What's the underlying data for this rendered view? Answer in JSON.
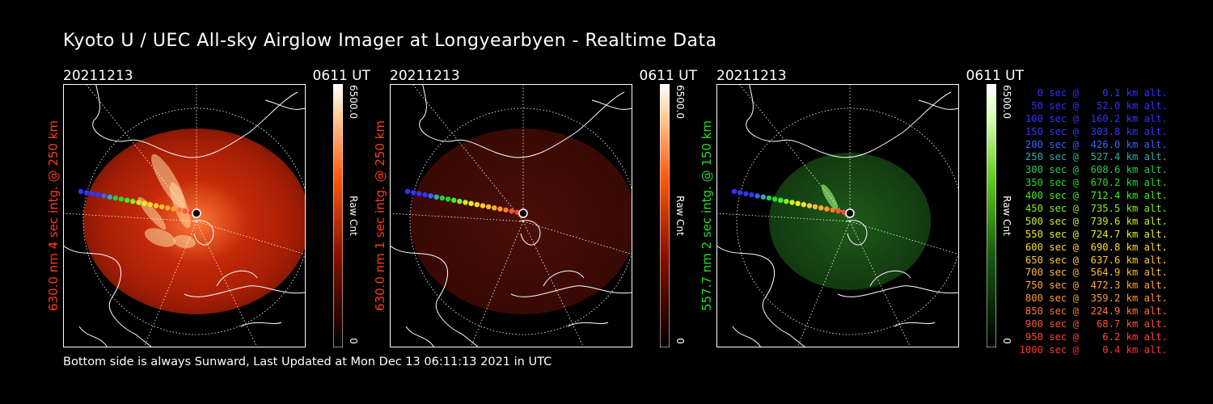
{
  "title": "Kyoto U / UEC All-sky Airglow Imager at Longyearbyen - Realtime Data",
  "colors": {
    "red": "#ff3b1a",
    "green": "#22dd22",
    "white": "#ffffff"
  },
  "panels": [
    {
      "date": "20211213",
      "time": "0611 UT",
      "ylabel": "630.0 nm 4 sec intg. @ 250 km",
      "cbar_max": "6500.0",
      "cbar_min": "0",
      "cbar_label": "Raw Cnt",
      "color": "red",
      "brightness": "bright"
    },
    {
      "date": "20211213",
      "time": "0611 UT",
      "ylabel": "630.0 nm 1 sec intg. @ 250 km",
      "cbar_max": "6500.0",
      "cbar_min": "0",
      "cbar_label": "Raw Cnt",
      "color": "red",
      "brightness": "dim"
    },
    {
      "date": "20211213",
      "time": "0611 UT",
      "ylabel": "557.7 nm 2 sec intg. @ 150 km",
      "cbar_max": "6500.0",
      "cbar_min": "0",
      "cbar_label": "Raw Cnt",
      "color": "green",
      "brightness": "dim"
    }
  ],
  "legend": [
    {
      "text": "0 sec @    0.1 km alt.",
      "color": "#3333ff"
    },
    {
      "text": "50 sec @   52.0 km alt.",
      "color": "#3333ff"
    },
    {
      "text": "100 sec @  160.2 km alt.",
      "color": "#3333ff"
    },
    {
      "text": "150 sec @  303.8 km alt.",
      "color": "#3333ff"
    },
    {
      "text": "200 sec @  426.0 km alt.",
      "color": "#3366ff"
    },
    {
      "text": "250 sec @  527.4 km alt.",
      "color": "#33aaaa"
    },
    {
      "text": "300 sec @  608.6 km alt.",
      "color": "#22cc55"
    },
    {
      "text": "350 sec @  670.2 km alt.",
      "color": "#22dd22"
    },
    {
      "text": "400 sec @  712.4 km alt.",
      "color": "#44ee22"
    },
    {
      "text": "450 sec @  735.5 km alt.",
      "color": "#88ee22"
    },
    {
      "text": "500 sec @  739.6 km alt.",
      "color": "#ccee22"
    },
    {
      "text": "550 sec @  724.7 km alt.",
      "color": "#eeee22"
    },
    {
      "text": "600 sec @  690.8 km alt.",
      "color": "#ffdd22"
    },
    {
      "text": "650 sec @  637.6 km alt.",
      "color": "#ffcc33"
    },
    {
      "text": "700 sec @  564.9 km alt.",
      "color": "#ffbb33"
    },
    {
      "text": "750 sec @  472.3 km alt.",
      "color": "#ffaa33"
    },
    {
      "text": "800 sec @  359.2 km alt.",
      "color": "#ff9933"
    },
    {
      "text": "850 sec @  224.9 km alt.",
      "color": "#ff7733"
    },
    {
      "text": "900 sec @   68.7 km alt.",
      "color": "#ff5533"
    },
    {
      "text": "950 sec @    6.2 km alt.",
      "color": "#ff4433"
    },
    {
      "text": "1000 sec @    0.4 km alt.",
      "color": "#ff3333"
    }
  ],
  "footer": "Bottom side is always Sunward, Last Updated at Mon Dec 13 06:11:13 2021 in UTC"
}
